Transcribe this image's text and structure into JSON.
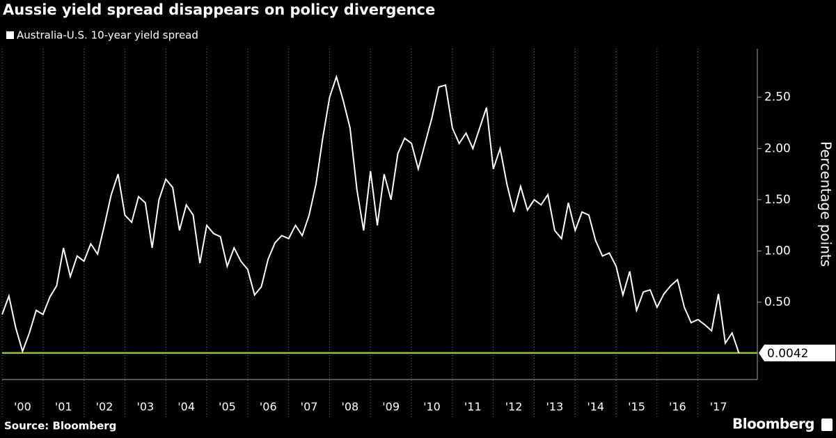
{
  "chart_data": {
    "type": "line",
    "title": "Aussie yield spread disappears on policy divergence",
    "y_axis_label": "Percentage points",
    "source": "Source: Bloomberg",
    "brand": "Bloomberg",
    "series": [
      {
        "name": "Australia-U.S. 10-year yield spread",
        "color": "#ffffff",
        "x": [
          2000,
          2000.167,
          2000.333,
          2000.5,
          2000.667,
          2000.833,
          2001,
          2001.167,
          2001.333,
          2001.5,
          2001.667,
          2001.833,
          2002,
          2002.167,
          2002.333,
          2002.5,
          2002.667,
          2002.833,
          2003,
          2003.167,
          2003.333,
          2003.5,
          2003.667,
          2003.833,
          2004,
          2004.167,
          2004.333,
          2004.5,
          2004.667,
          2004.833,
          2005,
          2005.167,
          2005.333,
          2005.5,
          2005.667,
          2005.833,
          2006,
          2006.167,
          2006.333,
          2006.5,
          2006.667,
          2006.833,
          2007,
          2007.167,
          2007.333,
          2007.5,
          2007.667,
          2007.833,
          2008,
          2008.167,
          2008.333,
          2008.5,
          2008.667,
          2008.833,
          2009,
          2009.167,
          2009.333,
          2009.5,
          2009.667,
          2009.833,
          2010,
          2010.167,
          2010.333,
          2010.5,
          2010.667,
          2010.833,
          2011,
          2011.167,
          2011.333,
          2011.5,
          2011.667,
          2011.833,
          2012,
          2012.167,
          2012.333,
          2012.5,
          2012.667,
          2012.833,
          2013,
          2013.167,
          2013.333,
          2013.5,
          2013.667,
          2013.833,
          2014,
          2014.167,
          2014.333,
          2014.5,
          2014.667,
          2014.833,
          2015,
          2015.167,
          2015.333,
          2015.5,
          2015.667,
          2015.833,
          2016,
          2016.167,
          2016.333,
          2016.5,
          2016.667,
          2016.833,
          2017,
          2017.167,
          2017.333,
          2017.5,
          2017.667,
          2017.833,
          2018
        ],
        "values": [
          0.38,
          0.56,
          0.25,
          0.02,
          0.2,
          0.42,
          0.38,
          0.55,
          0.66,
          1.03,
          0.75,
          0.95,
          0.9,
          1.07,
          0.97,
          1.25,
          1.55,
          1.75,
          1.35,
          1.28,
          1.53,
          1.47,
          1.03,
          1.5,
          1.7,
          1.62,
          1.2,
          1.45,
          1.35,
          0.88,
          1.25,
          1.17,
          1.14,
          0.85,
          1.03,
          0.9,
          0.82,
          0.57,
          0.65,
          0.92,
          1.08,
          1.15,
          1.12,
          1.25,
          1.15,
          1.35,
          1.65,
          2.1,
          2.5,
          2.7,
          2.47,
          2.2,
          1.6,
          1.2,
          1.78,
          1.25,
          1.75,
          1.5,
          1.95,
          2.1,
          2.05,
          1.8,
          2.05,
          2.3,
          2.6,
          2.62,
          2.2,
          2.05,
          2.15,
          2.0,
          2.2,
          2.4,
          1.8,
          2.0,
          1.65,
          1.38,
          1.63,
          1.4,
          1.5,
          1.45,
          1.55,
          1.2,
          1.12,
          1.47,
          1.2,
          1.38,
          1.35,
          1.1,
          0.95,
          0.98,
          0.85,
          0.57,
          0.8,
          0.42,
          0.6,
          0.62,
          0.45,
          0.58,
          0.66,
          0.72,
          0.45,
          0.3,
          0.33,
          0.28,
          0.22,
          0.58,
          0.1,
          0.2,
          0.0042
        ]
      }
    ],
    "reference_line": {
      "value": 0.0042,
      "color": "#8dc63f"
    },
    "xlim": [
      2000,
      2018.45
    ],
    "xticks": [
      {
        "value": 2000,
        "label": "'00"
      },
      {
        "value": 2001,
        "label": "'01"
      },
      {
        "value": 2002,
        "label": "'02"
      },
      {
        "value": 2003,
        "label": "'03"
      },
      {
        "value": 2004,
        "label": "'04"
      },
      {
        "value": 2005,
        "label": "'05"
      },
      {
        "value": 2006,
        "label": "'06"
      },
      {
        "value": 2007,
        "label": "'07"
      },
      {
        "value": 2008,
        "label": "'08"
      },
      {
        "value": 2009,
        "label": "'09"
      },
      {
        "value": 2010,
        "label": "'10"
      },
      {
        "value": 2011,
        "label": "'11"
      },
      {
        "value": 2012,
        "label": "'12"
      },
      {
        "value": 2013,
        "label": "'13"
      },
      {
        "value": 2014,
        "label": "'14"
      },
      {
        "value": 2015,
        "label": "'15"
      },
      {
        "value": 2016,
        "label": "'16"
      },
      {
        "value": 2017,
        "label": "'17"
      }
    ],
    "ylim": [
      -0.255,
      2.94
    ],
    "yticks": [
      {
        "value": 0.5,
        "label": "0.50"
      },
      {
        "value": 1,
        "label": "1.00"
      },
      {
        "value": 1.5,
        "label": "1.50"
      },
      {
        "value": 2,
        "label": "2.00"
      },
      {
        "value": 2.5,
        "label": "2.50"
      }
    ]
  }
}
